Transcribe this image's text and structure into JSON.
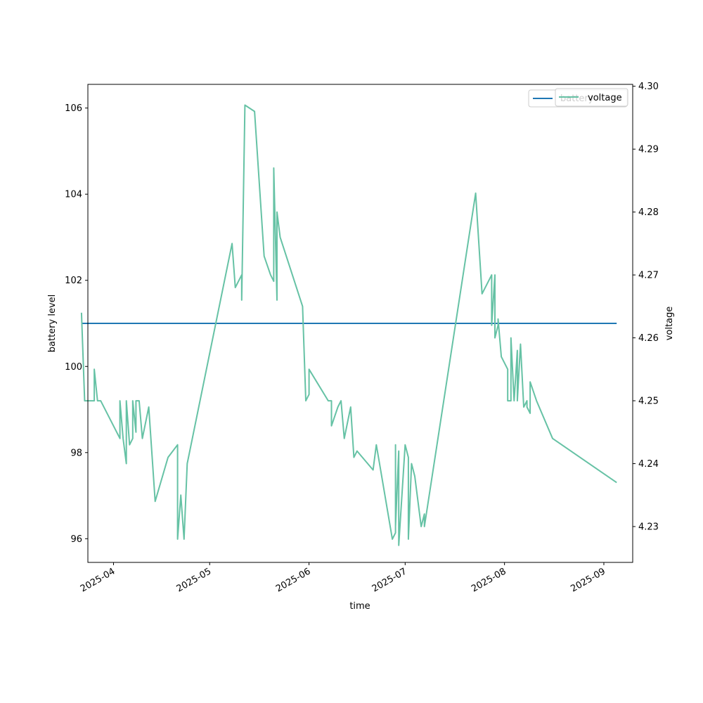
{
  "chart_data": {
    "type": "line",
    "title": "",
    "xlabel": "time",
    "ylabel_left": "battery level",
    "ylabel_right": "voltage",
    "x_tick_labels": [
      "2025-04",
      "2025-05",
      "2025-06",
      "2025-07",
      "2025-08",
      "2025-09"
    ],
    "x_tick_dates": [
      "2025-04-01",
      "2025-05-01",
      "2025-06-01",
      "2025-07-01",
      "2025-08-01",
      "2025-09-01"
    ],
    "xlim": [
      "2025-03-24",
      "2025-09-10"
    ],
    "ylim_left": [
      95.45,
      106.55
    ],
    "ylim_right": [
      4.2243,
      4.3003
    ],
    "yticks_left": [
      96,
      98,
      100,
      102,
      104,
      106
    ],
    "yticks_right": [
      4.23,
      4.24,
      4.25,
      4.26,
      4.27,
      4.28,
      4.29,
      4.3
    ],
    "grid": false,
    "legends": [
      {
        "placement": "upper right",
        "entries": [
          "battery"
        ]
      },
      {
        "placement": "upper right",
        "entries": [
          "voltage"
        ]
      }
    ],
    "series": [
      {
        "name": "battery",
        "axis": "left",
        "color": "#1f77b4",
        "x": [
          "2025-03-22",
          "2025-09-05"
        ],
        "y": [
          101,
          101
        ]
      },
      {
        "name": "voltage",
        "axis": "right",
        "color": "#66c2a5",
        "x": [
          "2025-03-22",
          "2025-03-23",
          "2025-03-26",
          "2025-03-26",
          "2025-03-27",
          "2025-03-28",
          "2025-04-03",
          "2025-04-03",
          "2025-04-04",
          "2025-04-05",
          "2025-04-05",
          "2025-04-06",
          "2025-04-07",
          "2025-04-07",
          "2025-04-08",
          "2025-04-08",
          "2025-04-09",
          "2025-04-10",
          "2025-04-12",
          "2025-04-14",
          "2025-04-18",
          "2025-04-21",
          "2025-04-21",
          "2025-04-22",
          "2025-04-23",
          "2025-04-24",
          "2025-05-08",
          "2025-05-09",
          "2025-05-11",
          "2025-05-11",
          "2025-05-12",
          "2025-05-15",
          "2025-05-18",
          "2025-05-20",
          "2025-05-21",
          "2025-05-21",
          "2025-05-22",
          "2025-05-22",
          "2025-05-23",
          "2025-05-30",
          "2025-05-31",
          "2025-06-01",
          "2025-06-01",
          "2025-06-07",
          "2025-06-08",
          "2025-06-08",
          "2025-06-10",
          "2025-06-11",
          "2025-06-12",
          "2025-06-14",
          "2025-06-15",
          "2025-06-16",
          "2025-06-21",
          "2025-06-22",
          "2025-06-23",
          "2025-06-27",
          "2025-06-28",
          "2025-06-28",
          "2025-06-28",
          "2025-06-29",
          "2025-06-29",
          "2025-07-01",
          "2025-07-02",
          "2025-07-02",
          "2025-07-03",
          "2025-07-04",
          "2025-07-06",
          "2025-07-07",
          "2025-07-07",
          "2025-07-23",
          "2025-07-25",
          "2025-07-28",
          "2025-07-28",
          "2025-07-29",
          "2025-07-29",
          "2025-07-30",
          "2025-07-30",
          "2025-07-31",
          "2025-07-31",
          "2025-08-02",
          "2025-08-02",
          "2025-08-03",
          "2025-08-03",
          "2025-08-04",
          "2025-08-05",
          "2025-08-05",
          "2025-08-06",
          "2025-08-07",
          "2025-08-08",
          "2025-08-08",
          "2025-08-09",
          "2025-08-09",
          "2025-08-11",
          "2025-08-16",
          "2025-09-05"
        ],
        "y": [
          4.264,
          4.25,
          4.25,
          4.255,
          4.25,
          4.25,
          4.244,
          4.25,
          4.244,
          4.24,
          4.25,
          4.243,
          4.244,
          4.25,
          4.245,
          4.25,
          4.25,
          4.244,
          4.249,
          4.234,
          4.241,
          4.243,
          4.228,
          4.235,
          4.228,
          4.24,
          4.275,
          4.268,
          4.27,
          4.266,
          4.297,
          4.296,
          4.273,
          4.27,
          4.269,
          4.287,
          4.266,
          4.28,
          4.276,
          4.265,
          4.25,
          4.251,
          4.255,
          4.25,
          4.25,
          4.246,
          4.249,
          4.25,
          4.244,
          4.249,
          4.241,
          4.242,
          4.239,
          4.243,
          4.24,
          4.228,
          4.229,
          4.243,
          4.23,
          4.242,
          4.227,
          4.243,
          4.241,
          4.228,
          4.24,
          4.238,
          4.23,
          4.232,
          4.23,
          4.283,
          4.267,
          4.27,
          4.262,
          4.27,
          4.26,
          4.262,
          4.263,
          4.257,
          4.257,
          4.255,
          4.25,
          4.25,
          4.26,
          4.25,
          4.258,
          4.25,
          4.259,
          4.249,
          4.25,
          4.249,
          4.248,
          4.253,
          4.25,
          4.244,
          4.237
        ]
      }
    ]
  }
}
